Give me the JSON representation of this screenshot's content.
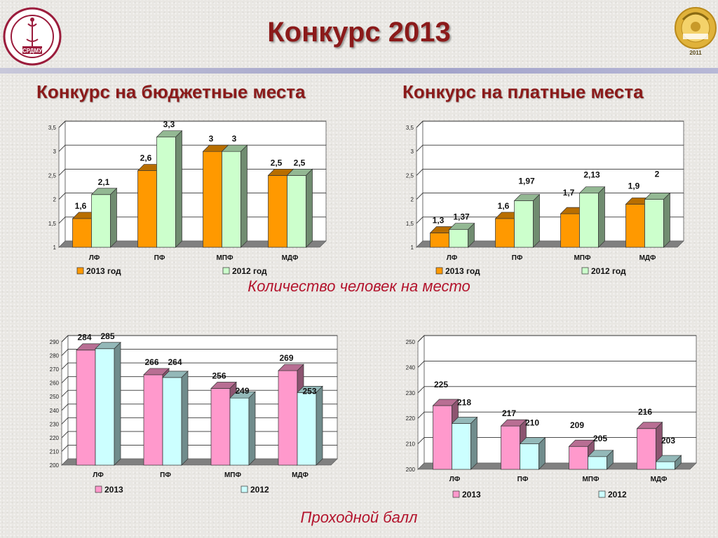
{
  "header": {
    "title": "Конкурс 2013",
    "left_logo_text": "СРДМУ",
    "right_logo_text": "2011"
  },
  "subtitles": {
    "budget": "Конкурс на бюджетные места",
    "paid": "Конкурс на платные места"
  },
  "captions": {
    "competition": "Количество человек на место",
    "passing_score": "Проходной балл"
  },
  "colors": {
    "title": "#8b1a1a",
    "caption": "#b3142d",
    "orange": "#ff9900",
    "light_green": "#ccffcc",
    "pink": "#ff99cc",
    "light_cyan": "#ccffff"
  },
  "chart_data": [
    {
      "type": "bar",
      "categories": [
        "ЛФ",
        "ПФ",
        "МПФ",
        "МДФ"
      ],
      "series": [
        {
          "name": "2013 год",
          "values": [
            1.6,
            2.6,
            3,
            2.5
          ],
          "labels": [
            "1,6",
            "2,6",
            "3",
            "2,5"
          ],
          "color": "#ff9900"
        },
        {
          "name": "2012 год",
          "values": [
            2.1,
            3.3,
            3,
            2.5
          ],
          "labels": [
            "2,1",
            "3,3",
            "3",
            "2,5"
          ],
          "color": "#ccffcc"
        }
      ],
      "ylim": [
        1,
        3.5
      ],
      "yticks": [
        "1",
        "1,5",
        "2",
        "2,5",
        "3",
        "3,5"
      ],
      "grid": true,
      "legend": "bottom"
    },
    {
      "type": "bar",
      "categories": [
        "ЛФ",
        "ПФ",
        "МПФ",
        "МДФ"
      ],
      "series": [
        {
          "name": "2013 год",
          "values": [
            1.3,
            1.6,
            1.7,
            1.9
          ],
          "labels": [
            "1,3",
            "1,6",
            "1,7",
            "1,9"
          ],
          "color": "#ff9900"
        },
        {
          "name": "2012 год",
          "values": [
            1.37,
            1.97,
            2.13,
            2
          ],
          "labels": [
            "1,37",
            "1,97",
            "2,13",
            "2"
          ],
          "color": "#ccffcc"
        }
      ],
      "ylim": [
        1,
        3.5
      ],
      "yticks": [
        "1",
        "1,5",
        "2",
        "2,5",
        "3",
        "3,5"
      ],
      "grid": true,
      "legend": "bottom"
    },
    {
      "type": "bar",
      "categories": [
        "ЛФ",
        "ПФ",
        "МПФ",
        "МДФ"
      ],
      "series": [
        {
          "name": "2013",
          "values": [
            284,
            266,
            256,
            269
          ],
          "labels": [
            "284",
            "266",
            "256",
            "269"
          ],
          "color": "#ff99cc"
        },
        {
          "name": "2012",
          "values": [
            285,
            264,
            249,
            253
          ],
          "labels": [
            "285",
            "264",
            "249",
            "253"
          ],
          "color": "#ccffff"
        }
      ],
      "ylim": [
        200,
        290
      ],
      "yticks": [
        "200",
        "210",
        "220",
        "230",
        "240",
        "250",
        "260",
        "270",
        "280",
        "290"
      ],
      "grid": true,
      "legend": "bottom"
    },
    {
      "type": "bar",
      "categories": [
        "ЛФ",
        "ПФ",
        "МПФ",
        "МДФ"
      ],
      "series": [
        {
          "name": "2013",
          "values": [
            225,
            217,
            209,
            216
          ],
          "labels": [
            "225",
            "217",
            "209",
            "216"
          ],
          "color": "#ff99cc"
        },
        {
          "name": "2012",
          "values": [
            218,
            210,
            205,
            203
          ],
          "labels": [
            "218",
            "210",
            "205",
            "203"
          ],
          "color": "#ccffff"
        }
      ],
      "ylim": [
        200,
        250
      ],
      "yticks": [
        "200",
        "210",
        "220",
        "230",
        "240",
        "250"
      ],
      "grid": true,
      "legend": "bottom"
    }
  ]
}
